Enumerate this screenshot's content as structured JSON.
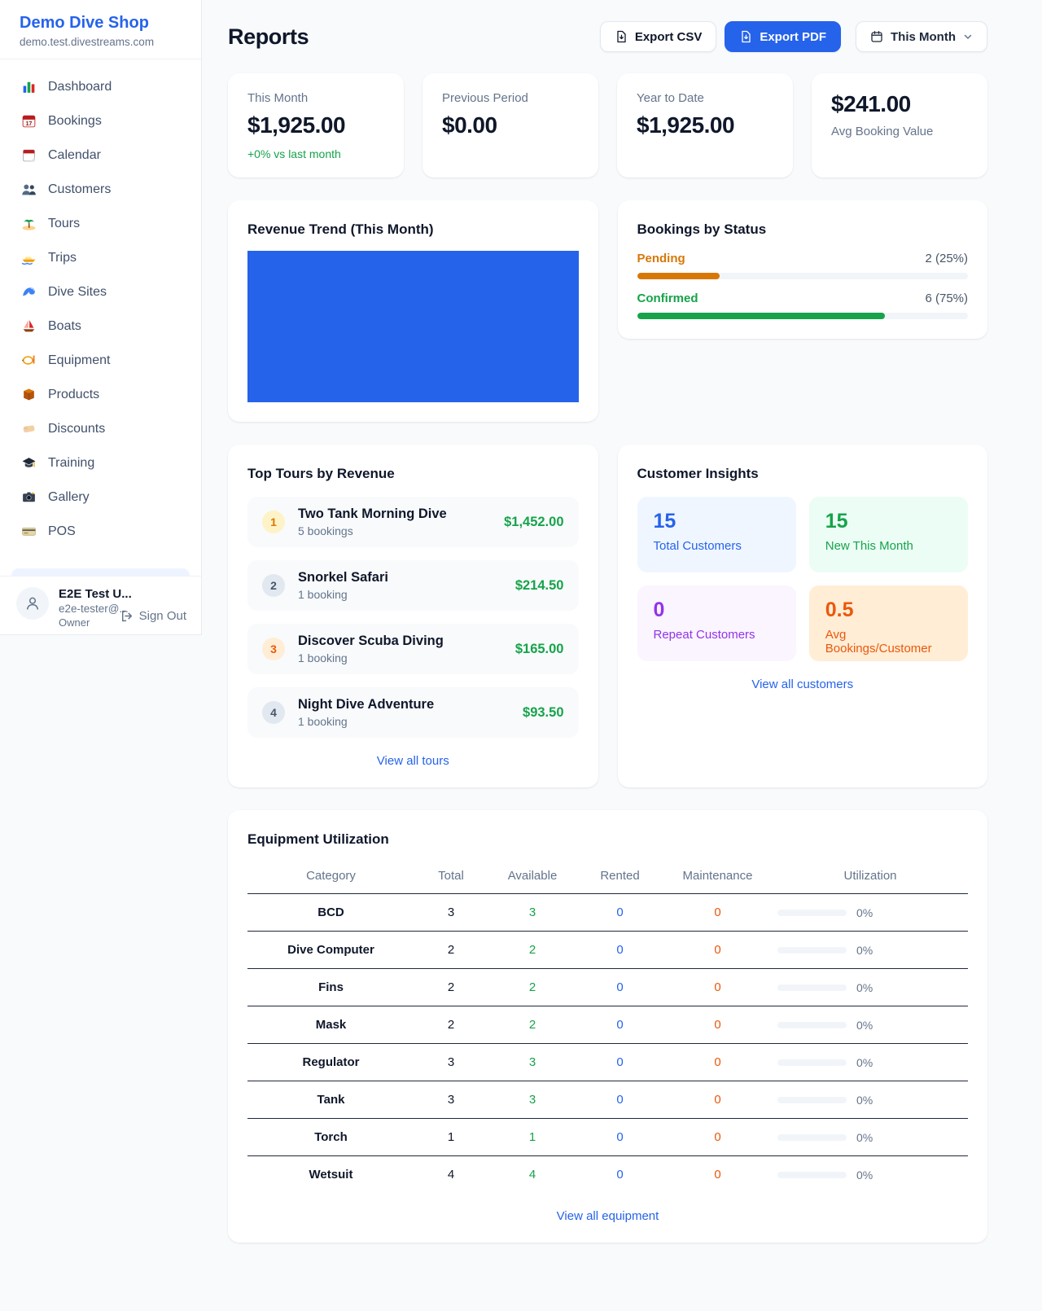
{
  "colors": {
    "accent": "#2563eb",
    "positive_green": "#16a34a",
    "pending_orange": "#d97706",
    "maintenance_orange": "#ea580c",
    "repeat_purple": "#9333ea"
  },
  "sidebar": {
    "brand": "Demo Dive Shop",
    "domain": "demo.test.divestreams.com",
    "items": [
      {
        "icon": "dashboard-icon",
        "label": "Dashboard"
      },
      {
        "icon": "bookings-icon",
        "label": "Bookings"
      },
      {
        "icon": "calendar-icon",
        "label": "Calendar"
      },
      {
        "icon": "customers-icon",
        "label": "Customers"
      },
      {
        "icon": "tours-icon",
        "label": "Tours"
      },
      {
        "icon": "trips-icon",
        "label": "Trips"
      },
      {
        "icon": "dive-sites-icon",
        "label": "Dive Sites"
      },
      {
        "icon": "boats-icon",
        "label": "Boats"
      },
      {
        "icon": "equipment-icon",
        "label": "Equipment"
      },
      {
        "icon": "products-icon",
        "label": "Products"
      },
      {
        "icon": "discounts-icon",
        "label": "Discounts"
      },
      {
        "icon": "training-icon",
        "label": "Training"
      },
      {
        "icon": "gallery-icon",
        "label": "Gallery"
      },
      {
        "icon": "pos-icon",
        "label": "POS"
      }
    ],
    "user": {
      "name": "E2E Test U...",
      "email": "e2e-tester@...",
      "role": "Owner",
      "signout_label": "Sign Out"
    }
  },
  "header": {
    "title": "Reports",
    "export_csv_label": "Export CSV",
    "export_pdf_label": "Export PDF",
    "period_label": "This Month"
  },
  "stats": [
    {
      "label": "This Month",
      "value": "$1,925.00",
      "delta": "+0% vs last month"
    },
    {
      "label": "Previous Period",
      "value": "$0.00"
    },
    {
      "label": "Year to Date",
      "value": "$1,925.00"
    },
    {
      "label": "Avg Booking Value",
      "value": "$241.00",
      "value_first": true
    }
  ],
  "revenue_trend": {
    "title": "Revenue Trend (This Month)",
    "fill_color": "#2563eb"
  },
  "bookings_by_status": {
    "title": "Bookings by Status",
    "rows": [
      {
        "label": "Pending",
        "count_text": "2 (25%)",
        "pct": 25,
        "color": "#d97706"
      },
      {
        "label": "Confirmed",
        "count_text": "6 (75%)",
        "pct": 75,
        "color": "#16a34a"
      }
    ]
  },
  "top_tours": {
    "title": "Top Tours by Revenue",
    "view_all_label": "View all tours",
    "rows": [
      {
        "rank": "1",
        "tier": "gold",
        "name": "Two Tank Morning Dive",
        "bookings": "5 bookings",
        "revenue": "$1,452.00"
      },
      {
        "rank": "2",
        "tier": "default",
        "name": "Snorkel Safari",
        "bookings": "1 booking",
        "revenue": "$214.50"
      },
      {
        "rank": "3",
        "tier": "bronze",
        "name": "Discover Scuba Diving",
        "bookings": "1 booking",
        "revenue": "$165.00"
      },
      {
        "rank": "4",
        "tier": "default",
        "name": "Night Dive Adventure",
        "bookings": "1 booking",
        "revenue": "$93.50"
      }
    ]
  },
  "customer_insights": {
    "title": "Customer Insights",
    "view_all_label": "View all customers",
    "tiles": [
      {
        "value": "15",
        "label": "Total Customers",
        "theme": "blue"
      },
      {
        "value": "15",
        "label": "New This Month",
        "theme": "green"
      },
      {
        "value": "0",
        "label": "Repeat Customers",
        "theme": "purple"
      },
      {
        "value": "0.5",
        "label": "Avg Bookings/Customer",
        "theme": "orange"
      }
    ]
  },
  "equipment": {
    "title": "Equipment Utilization",
    "view_all_label": "View all equipment",
    "columns": [
      "Category",
      "Total",
      "Available",
      "Rented",
      "Maintenance",
      "Utilization"
    ],
    "rows": [
      {
        "category": "BCD",
        "total": "3",
        "available": "3",
        "rented": "0",
        "maintenance": "0",
        "utilization_pct": 0,
        "utilization_label": "0%"
      },
      {
        "category": "Dive Computer",
        "total": "2",
        "available": "2",
        "rented": "0",
        "maintenance": "0",
        "utilization_pct": 0,
        "utilization_label": "0%"
      },
      {
        "category": "Fins",
        "total": "2",
        "available": "2",
        "rented": "0",
        "maintenance": "0",
        "utilization_pct": 0,
        "utilization_label": "0%"
      },
      {
        "category": "Mask",
        "total": "2",
        "available": "2",
        "rented": "0",
        "maintenance": "0",
        "utilization_pct": 0,
        "utilization_label": "0%"
      },
      {
        "category": "Regulator",
        "total": "3",
        "available": "3",
        "rented": "0",
        "maintenance": "0",
        "utilization_pct": 0,
        "utilization_label": "0%"
      },
      {
        "category": "Tank",
        "total": "3",
        "available": "3",
        "rented": "0",
        "maintenance": "0",
        "utilization_pct": 0,
        "utilization_label": "0%"
      },
      {
        "category": "Torch",
        "total": "1",
        "available": "1",
        "rented": "0",
        "maintenance": "0",
        "utilization_pct": 0,
        "utilization_label": "0%"
      },
      {
        "category": "Wetsuit",
        "total": "4",
        "available": "4",
        "rented": "0",
        "maintenance": "0",
        "utilization_pct": 0,
        "utilization_label": "0%"
      }
    ]
  }
}
